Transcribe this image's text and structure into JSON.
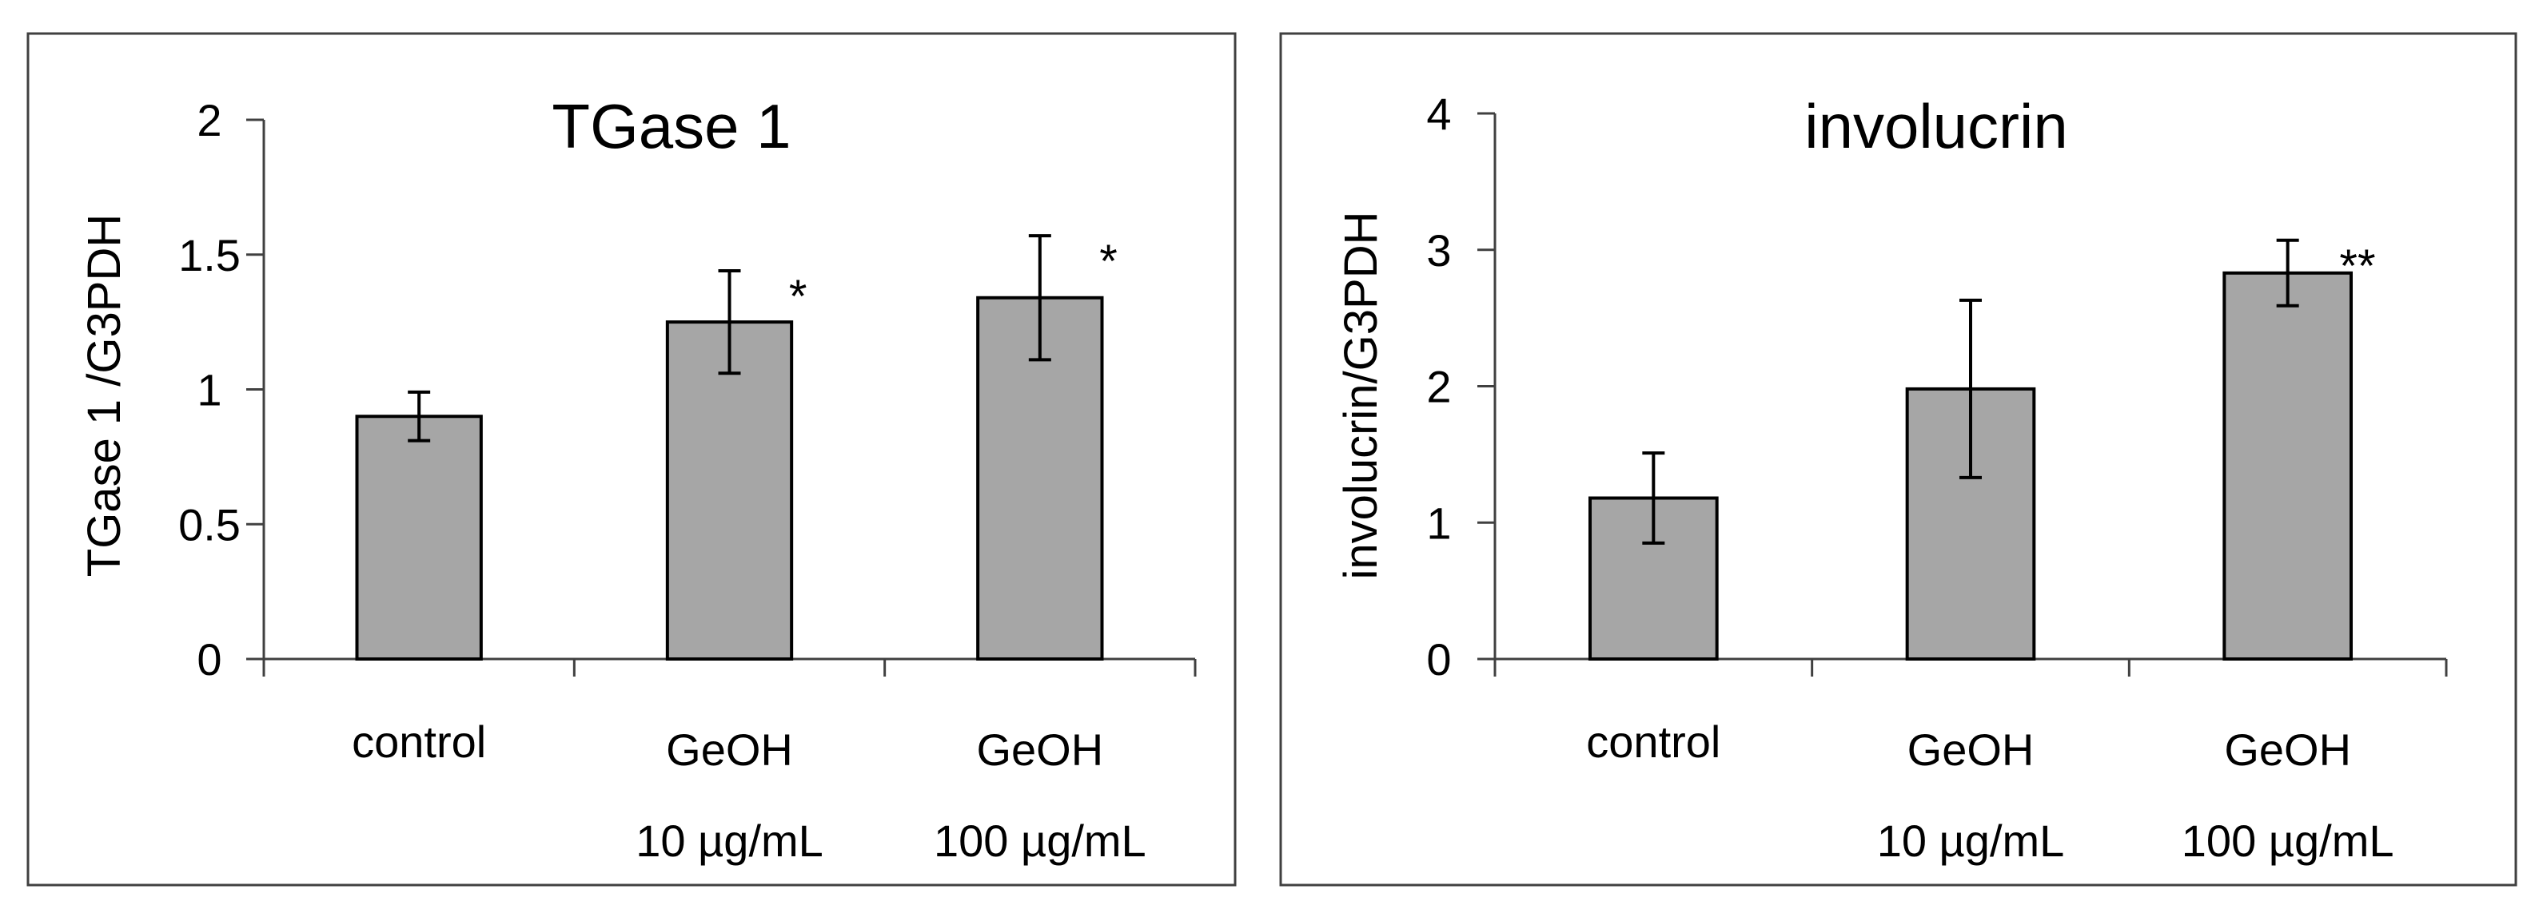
{
  "chart_data": [
    {
      "type": "bar",
      "title": "TGase 1",
      "ylabel": "TGase 1 /G3PDH",
      "xlabel": "",
      "ylim": [
        0,
        2
      ],
      "yticks": [
        "0",
        "0.5",
        "1",
        "1.5",
        "2"
      ],
      "yticks_values": [
        0,
        0.5,
        1,
        1.5,
        2
      ],
      "categories": [
        {
          "line1": "control",
          "line2": ""
        },
        {
          "line1": "GeOH",
          "line2": "10 µg/mL"
        },
        {
          "line1": "GeOH",
          "line2": "100 µg/mL"
        }
      ],
      "values": [
        0.9,
        1.25,
        1.34
      ],
      "errors": [
        0.09,
        0.19,
        0.23
      ],
      "significance": [
        "",
        "*",
        "*"
      ]
    },
    {
      "type": "bar",
      "title": "involucrin",
      "ylabel": "involucrin/G3PDH",
      "xlabel": "",
      "ylim": [
        0,
        4
      ],
      "yticks": [
        "0",
        "1",
        "2",
        "3",
        "4"
      ],
      "yticks_values": [
        0,
        1,
        2,
        3,
        4
      ],
      "categories": [
        {
          "line1": "control",
          "line2": ""
        },
        {
          "line1": "GeOH",
          "line2": "10 µg/mL"
        },
        {
          "line1": "GeOH",
          "line2": "100 µg/mL"
        }
      ],
      "values": [
        1.18,
        1.98,
        2.83
      ],
      "errors": [
        0.33,
        0.65,
        0.24
      ],
      "significance": [
        "",
        "",
        "**"
      ]
    }
  ]
}
